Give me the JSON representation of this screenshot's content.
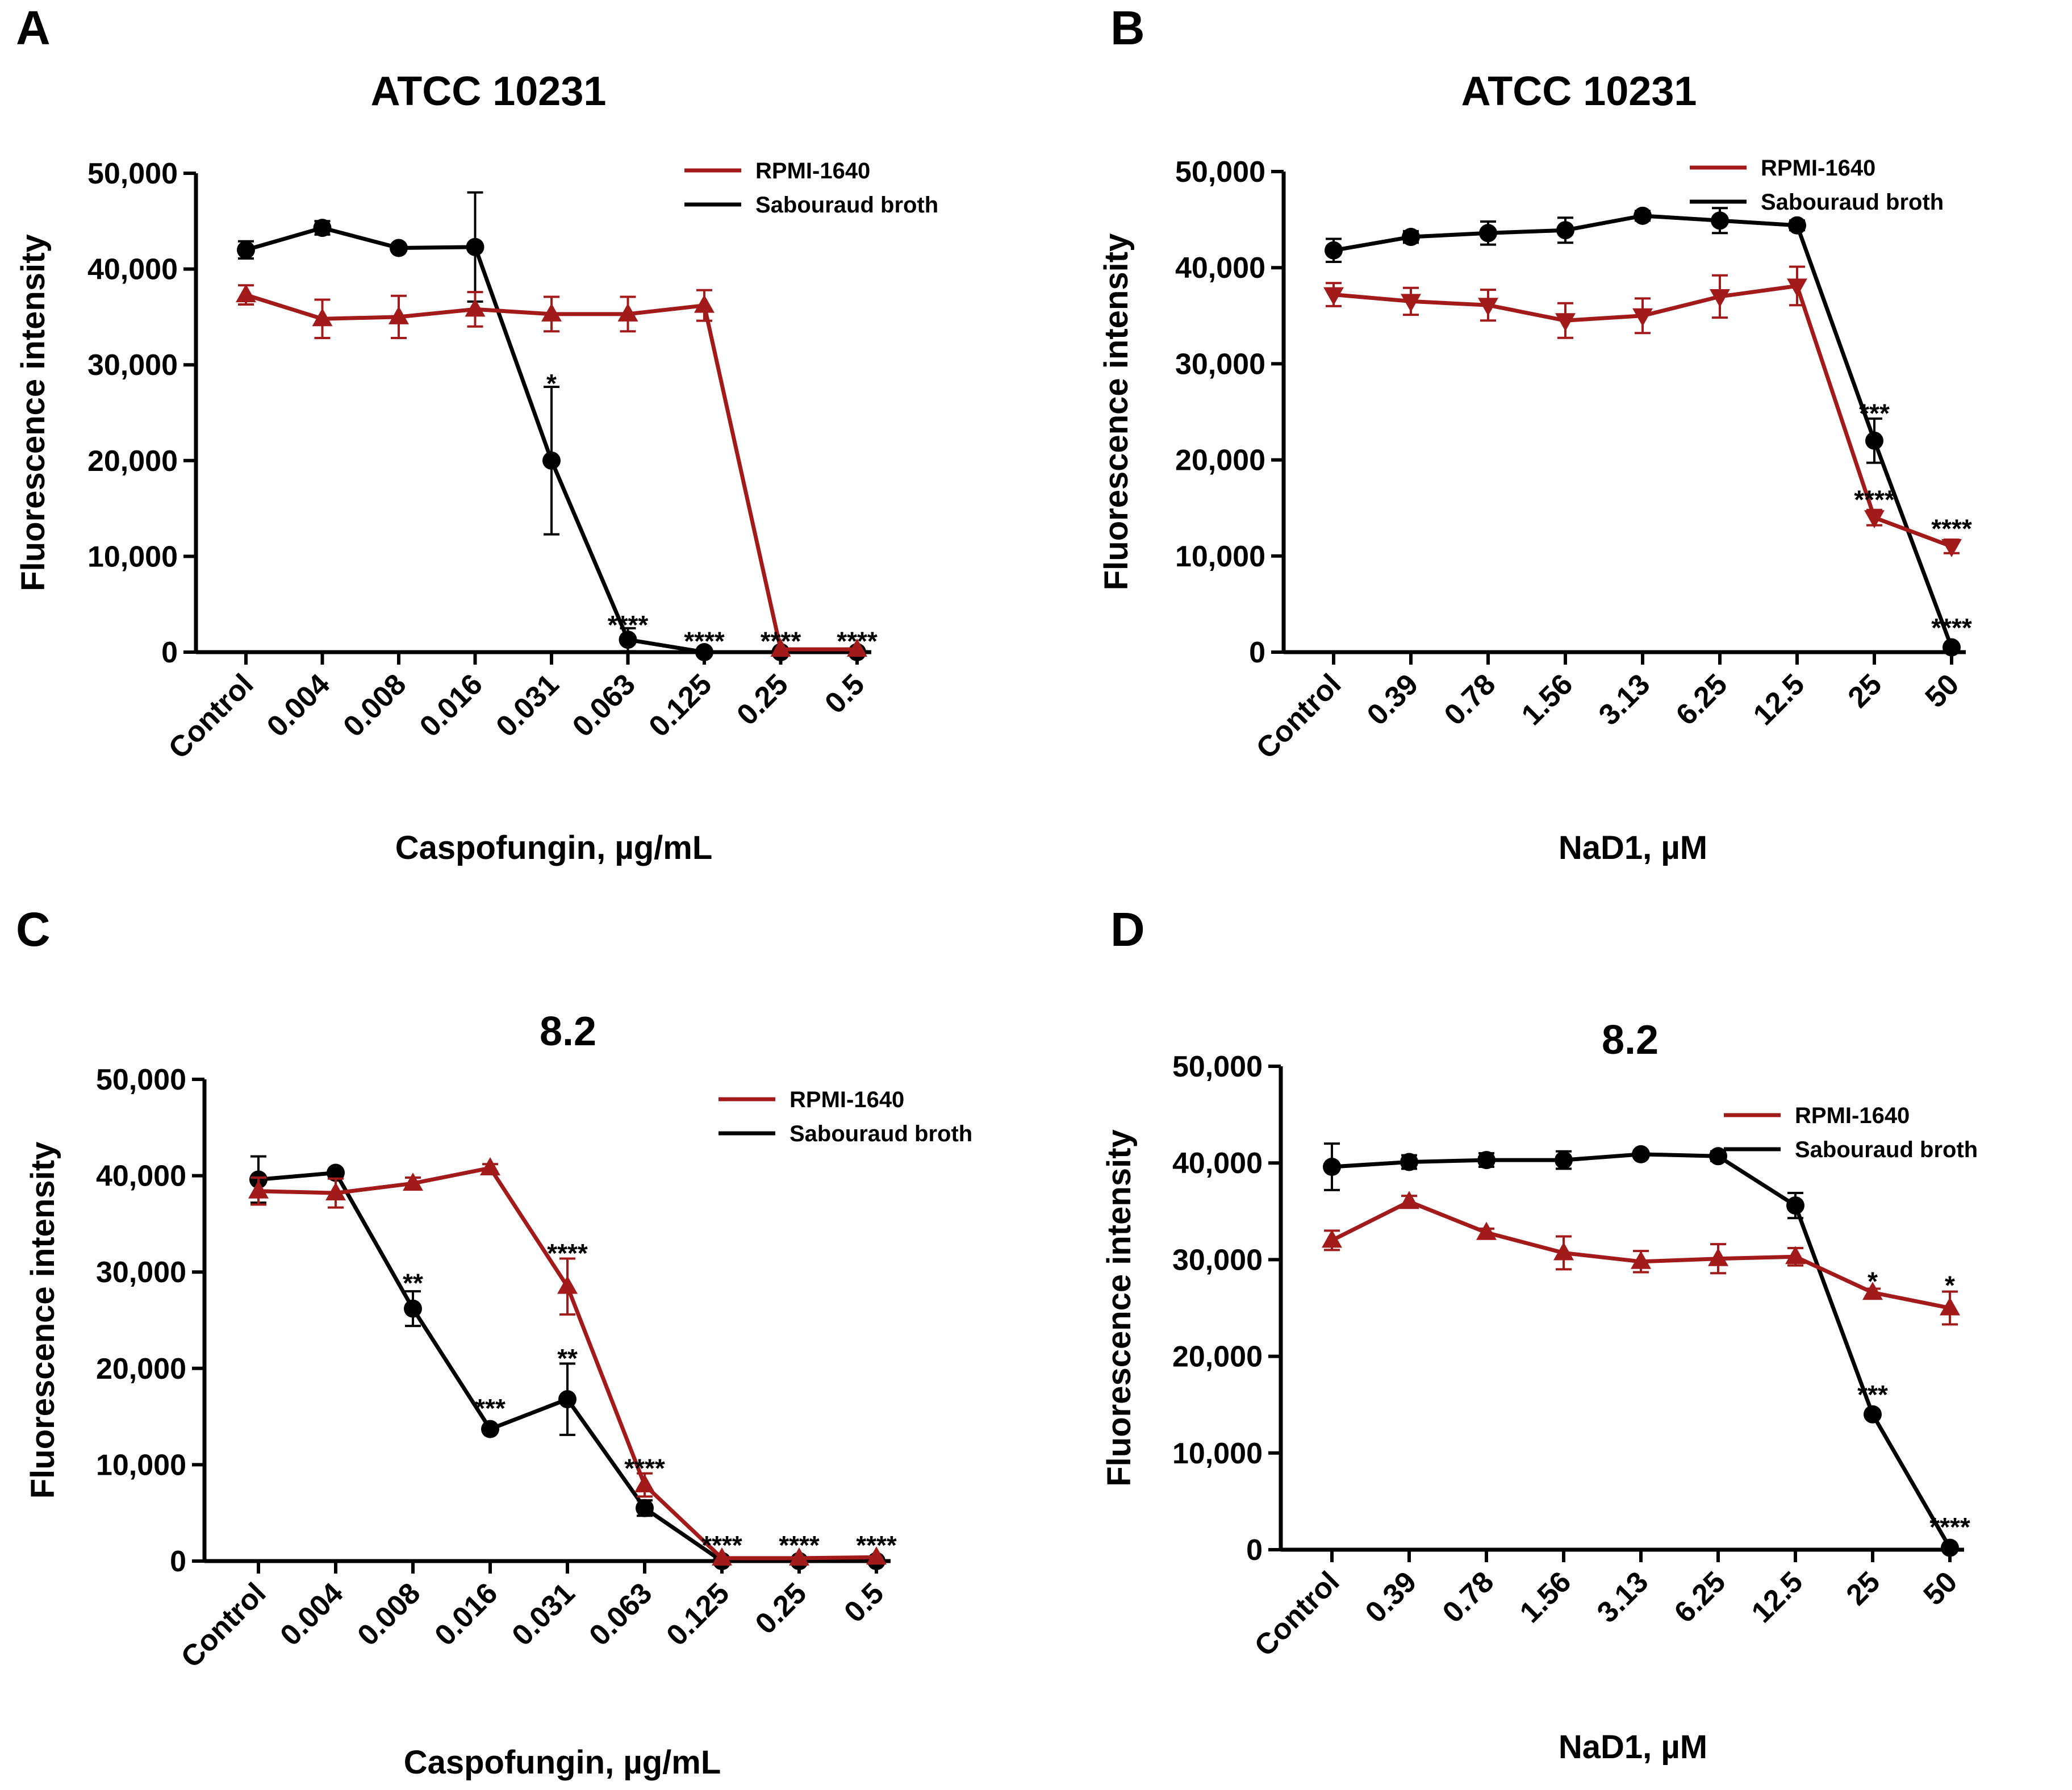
{
  "figure": {
    "colors": {
      "rpmi": "#a31a1a",
      "sabouraud": "#000000"
    },
    "panels": [
      {
        "letter": "A",
        "title": "ATCC 10231"
      },
      {
        "letter": "B",
        "title": "ATCC 10231"
      },
      {
        "letter": "C",
        "title": "8.2"
      },
      {
        "letter": "D",
        "title": "8.2"
      }
    ]
  },
  "chart_data": [
    {
      "type": "line",
      "panel": "A",
      "title": "ATCC 10231",
      "xlabel": "Caspofungin, µg/mL",
      "ylabel": "Fluorescence intensity",
      "ylim": [
        0,
        50000
      ],
      "yticks": [
        "0",
        "10,000",
        "20,000",
        "30,000",
        "40,000",
        "50,000"
      ],
      "categories": [
        "Control",
        "0.004",
        "0.008",
        "0.016",
        "0.031",
        "0.063",
        "0.125",
        "0.25",
        "0.5"
      ],
      "legend": "top-right",
      "series": [
        {
          "name": "RPMI-1640",
          "marker": "triangle-up",
          "values": [
            37300,
            34800,
            35000,
            35800,
            35300,
            35300,
            36200,
            300,
            300
          ],
          "errors": [
            1000,
            2000,
            2200,
            1800,
            1800,
            1800,
            1600,
            0,
            0
          ]
        },
        {
          "name": "Sabouraud broth",
          "marker": "circle",
          "values": [
            42000,
            44300,
            42200,
            42300,
            20000,
            1300,
            0,
            0,
            0
          ],
          "errors": [
            900,
            700,
            0,
            5700,
            7700,
            1200,
            0,
            0,
            0
          ]
        }
      ],
      "annotations": [
        {
          "index": 4,
          "value": 27700,
          "text": "*"
        },
        {
          "index": 5,
          "value": 2500,
          "text": "****"
        },
        {
          "index": 6,
          "value": 800,
          "text": "****"
        },
        {
          "index": 7,
          "value": 800,
          "text": "****"
        },
        {
          "index": 8,
          "value": 800,
          "text": "****"
        }
      ]
    },
    {
      "type": "line",
      "panel": "B",
      "title": "ATCC 10231",
      "xlabel": "NaD1, µM",
      "ylabel": "Fluorescence intensity",
      "ylim": [
        0,
        50000
      ],
      "yticks": [
        "0",
        "10,000",
        "20,000",
        "30,000",
        "40,000",
        "50,000"
      ],
      "categories": [
        "Control",
        "0.39",
        "0.78",
        "1.56",
        "3.13",
        "6.25",
        "12.5",
        "25",
        "50"
      ],
      "legend": "top-right",
      "series": [
        {
          "name": "RPMI-1640",
          "marker": "triangle-down",
          "values": [
            37200,
            36500,
            36100,
            34500,
            35000,
            37000,
            38100,
            14000,
            11000
          ],
          "errors": [
            1200,
            1400,
            1600,
            1800,
            1800,
            2200,
            2000,
            800,
            700
          ]
        },
        {
          "name": "Sabouraud broth",
          "marker": "circle",
          "values": [
            41800,
            43200,
            43600,
            43900,
            45400,
            44900,
            44400,
            22000,
            500
          ],
          "errors": [
            1200,
            600,
            1200,
            1300,
            500,
            1300,
            500,
            2300,
            0
          ]
        }
      ],
      "annotations": [
        {
          "index": 7,
          "value": 24500,
          "text": "***"
        },
        {
          "index": 7,
          "value": 15500,
          "text": "****"
        },
        {
          "index": 8,
          "value": 12500,
          "text": "****"
        },
        {
          "index": 8,
          "value": 2200,
          "text": "****"
        }
      ]
    },
    {
      "type": "line",
      "panel": "C",
      "title": "8.2",
      "xlabel": "Caspofungin, µg/mL",
      "ylabel": "Fluorescence intensity",
      "ylim": [
        0,
        50000
      ],
      "yticks": [
        "0",
        "10,000",
        "20,000",
        "30,000",
        "40,000",
        "50,000"
      ],
      "categories": [
        "Control",
        "0.004",
        "0.008",
        "0.016",
        "0.031",
        "0.063",
        "0.125",
        "0.25",
        "0.5"
      ],
      "legend": "top-right",
      "series": [
        {
          "name": "RPMI-1640",
          "marker": "triangle-up",
          "values": [
            38400,
            38200,
            39200,
            40800,
            28500,
            7900,
            300,
            300,
            400
          ],
          "errors": [
            1400,
            1500,
            600,
            400,
            2900,
            1200,
            0,
            0,
            0
          ]
        },
        {
          "name": "Sabouraud broth",
          "marker": "circle",
          "values": [
            39600,
            40300,
            26200,
            13700,
            16800,
            5500,
            0,
            0,
            0
          ],
          "errors": [
            2400,
            300,
            1800,
            300,
            3700,
            800,
            0,
            0,
            0
          ]
        }
      ],
      "annotations": [
        {
          "index": 2,
          "value": 28500,
          "text": "**"
        },
        {
          "index": 3,
          "value": 15500,
          "text": "***"
        },
        {
          "index": 4,
          "value": 31600,
          "text": "****"
        },
        {
          "index": 4,
          "value": 20700,
          "text": "**"
        },
        {
          "index": 5,
          "value": 9300,
          "text": "****"
        },
        {
          "index": 6,
          "value": 1300,
          "text": "****"
        },
        {
          "index": 7,
          "value": 1300,
          "text": "****"
        },
        {
          "index": 8,
          "value": 1300,
          "text": "****"
        }
      ]
    },
    {
      "type": "line",
      "panel": "D",
      "title": "8.2",
      "xlabel": "NaD1, µM",
      "ylabel": "Fluorescence intensity",
      "ylim": [
        0,
        50000
      ],
      "yticks": [
        "0",
        "10,000",
        "20,000",
        "30,000",
        "40,000",
        "50,000"
      ],
      "categories": [
        "Control",
        "0.39",
        "0.78",
        "1.56",
        "3.13",
        "6.25",
        "12.5",
        "25",
        "50"
      ],
      "legend": "top-right",
      "series": [
        {
          "name": "RPMI-1640",
          "marker": "triangle-up",
          "values": [
            32000,
            36000,
            32800,
            30700,
            29800,
            30100,
            30300,
            26600,
            25000
          ],
          "errors": [
            1000,
            600,
            400,
            1700,
            1100,
            1500,
            900,
            400,
            1700
          ]
        },
        {
          "name": "Sabouraud broth",
          "marker": "circle",
          "values": [
            39600,
            40100,
            40300,
            40300,
            40900,
            40700,
            35600,
            14000,
            200
          ],
          "errors": [
            2400,
            700,
            700,
            900,
            300,
            500,
            1300,
            0,
            0
          ]
        }
      ],
      "annotations": [
        {
          "index": 7,
          "value": 27400,
          "text": "*"
        },
        {
          "index": 8,
          "value": 27000,
          "text": "*"
        },
        {
          "index": 7,
          "value": 15700,
          "text": "***"
        },
        {
          "index": 8,
          "value": 2000,
          "text": "****"
        }
      ]
    }
  ]
}
